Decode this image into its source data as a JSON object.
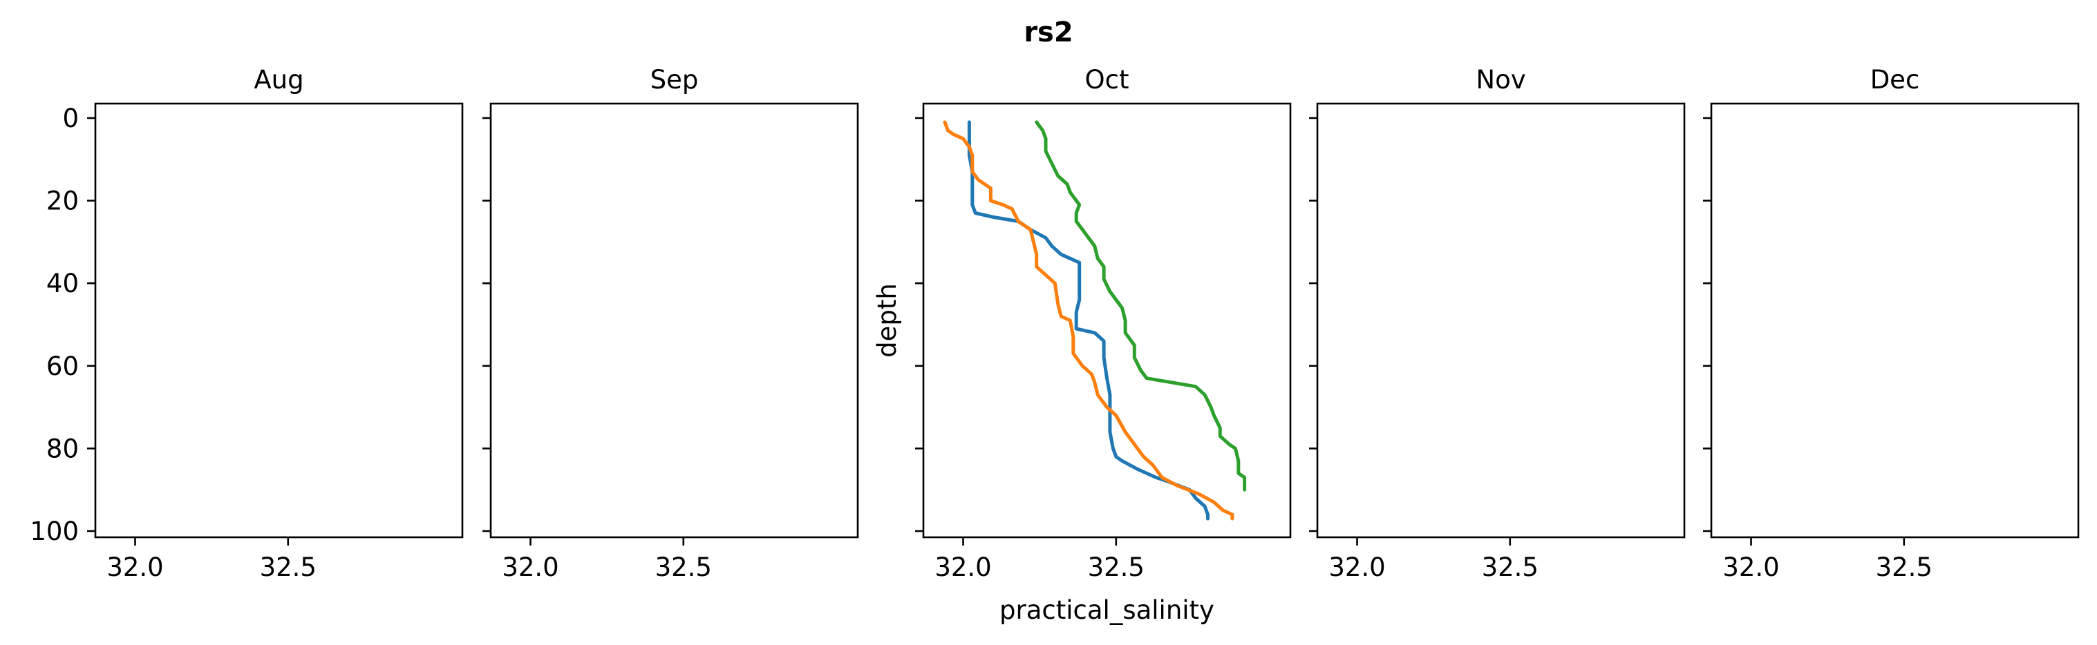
{
  "chart_data": {
    "type": "line",
    "suptitle": "rs2",
    "xlabel": "practical_salinity",
    "ylabel": "depth",
    "xlim": [
      31.87,
      33.07
    ],
    "ylim": [
      101.5,
      -3.5
    ],
    "y_inverted": true,
    "yticks": [
      0,
      20,
      40,
      60,
      80,
      100
    ],
    "xticks": [
      32.0,
      32.5
    ],
    "grid": false,
    "panels": [
      {
        "title": "Aug",
        "series": []
      },
      {
        "title": "Sep",
        "series": []
      },
      {
        "title": "Oct",
        "show_xlabel": true,
        "show_ylabel": true,
        "series": [
          {
            "color": "#1f77b4",
            "points": [
              [
                32.02,
                1
              ],
              [
                32.02,
                9
              ],
              [
                32.03,
                13
              ],
              [
                32.03,
                18
              ],
              [
                32.03,
                21
              ],
              [
                32.04,
                23
              ],
              [
                32.1,
                24
              ],
              [
                32.18,
                25
              ],
              [
                32.22,
                27
              ],
              [
                32.27,
                29
              ],
              [
                32.29,
                31
              ],
              [
                32.32,
                33
              ],
              [
                32.35,
                34
              ],
              [
                32.38,
                35
              ],
              [
                32.38,
                40
              ],
              [
                32.38,
                44
              ],
              [
                32.37,
                47
              ],
              [
                32.37,
                51
              ],
              [
                32.43,
                52
              ],
              [
                32.46,
                54
              ],
              [
                32.46,
                58
              ],
              [
                32.47,
                63
              ],
              [
                32.48,
                67
              ],
              [
                32.48,
                71
              ],
              [
                32.48,
                76
              ],
              [
                32.49,
                80
              ],
              [
                32.5,
                82
              ],
              [
                32.52,
                83
              ],
              [
                32.57,
                85
              ],
              [
                32.63,
                87
              ],
              [
                32.67,
                88
              ],
              [
                32.74,
                90
              ],
              [
                32.76,
                92
              ],
              [
                32.79,
                94
              ],
              [
                32.8,
                96
              ],
              [
                32.8,
                97
              ]
            ]
          },
          {
            "color": "#ff7f0e",
            "points": [
              [
                31.94,
                1
              ],
              [
                31.95,
                3
              ],
              [
                31.97,
                4
              ],
              [
                32.0,
                5
              ],
              [
                32.02,
                7
              ],
              [
                32.03,
                9
              ],
              [
                32.03,
                13
              ],
              [
                32.05,
                15
              ],
              [
                32.09,
                17
              ],
              [
                32.09,
                20
              ],
              [
                32.13,
                21
              ],
              [
                32.16,
                22
              ],
              [
                32.18,
                25
              ],
              [
                32.22,
                27
              ],
              [
                32.23,
                30
              ],
              [
                32.24,
                33
              ],
              [
                32.24,
                36
              ],
              [
                32.27,
                38
              ],
              [
                32.3,
                40
              ],
              [
                32.31,
                45
              ],
              [
                32.32,
                48
              ],
              [
                32.35,
                49
              ],
              [
                32.36,
                53
              ],
              [
                32.36,
                57
              ],
              [
                32.39,
                60
              ],
              [
                32.42,
                62
              ],
              [
                32.43,
                64
              ],
              [
                32.44,
                67
              ],
              [
                32.47,
                70
              ],
              [
                32.5,
                72
              ],
              [
                32.53,
                76
              ],
              [
                32.56,
                79
              ],
              [
                32.59,
                82
              ],
              [
                32.62,
                84
              ],
              [
                32.65,
                87
              ],
              [
                32.7,
                89
              ],
              [
                32.77,
                91
              ],
              [
                32.82,
                93
              ],
              [
                32.85,
                95
              ],
              [
                32.88,
                96
              ],
              [
                32.88,
                97
              ]
            ]
          },
          {
            "color": "#2ca02c",
            "points": [
              [
                32.24,
                1
              ],
              [
                32.26,
                3
              ],
              [
                32.27,
                5
              ],
              [
                32.27,
                8
              ],
              [
                32.29,
                11
              ],
              [
                32.31,
                14
              ],
              [
                32.34,
                16
              ],
              [
                32.35,
                18
              ],
              [
                32.38,
                21
              ],
              [
                32.37,
                23
              ],
              [
                32.37,
                25
              ],
              [
                32.39,
                27
              ],
              [
                32.41,
                29
              ],
              [
                32.43,
                31
              ],
              [
                32.44,
                34
              ],
              [
                32.46,
                36
              ],
              [
                32.46,
                39
              ],
              [
                32.48,
                42
              ],
              [
                32.5,
                44
              ],
              [
                32.52,
                46
              ],
              [
                32.53,
                49
              ],
              [
                32.53,
                52
              ],
              [
                32.56,
                55
              ],
              [
                32.56,
                58
              ],
              [
                32.58,
                61
              ],
              [
                32.6,
                63
              ],
              [
                32.68,
                64
              ],
              [
                32.76,
                65
              ],
              [
                32.79,
                67
              ],
              [
                32.81,
                70
              ],
              [
                32.82,
                72
              ],
              [
                32.84,
                75
              ],
              [
                32.84,
                77
              ],
              [
                32.87,
                79
              ],
              [
                32.89,
                80
              ],
              [
                32.9,
                83
              ],
              [
                32.9,
                86
              ],
              [
                32.92,
                87
              ],
              [
                32.92,
                90
              ]
            ]
          }
        ]
      },
      {
        "title": "Nov",
        "series": []
      },
      {
        "title": "Dec",
        "series": []
      }
    ]
  }
}
